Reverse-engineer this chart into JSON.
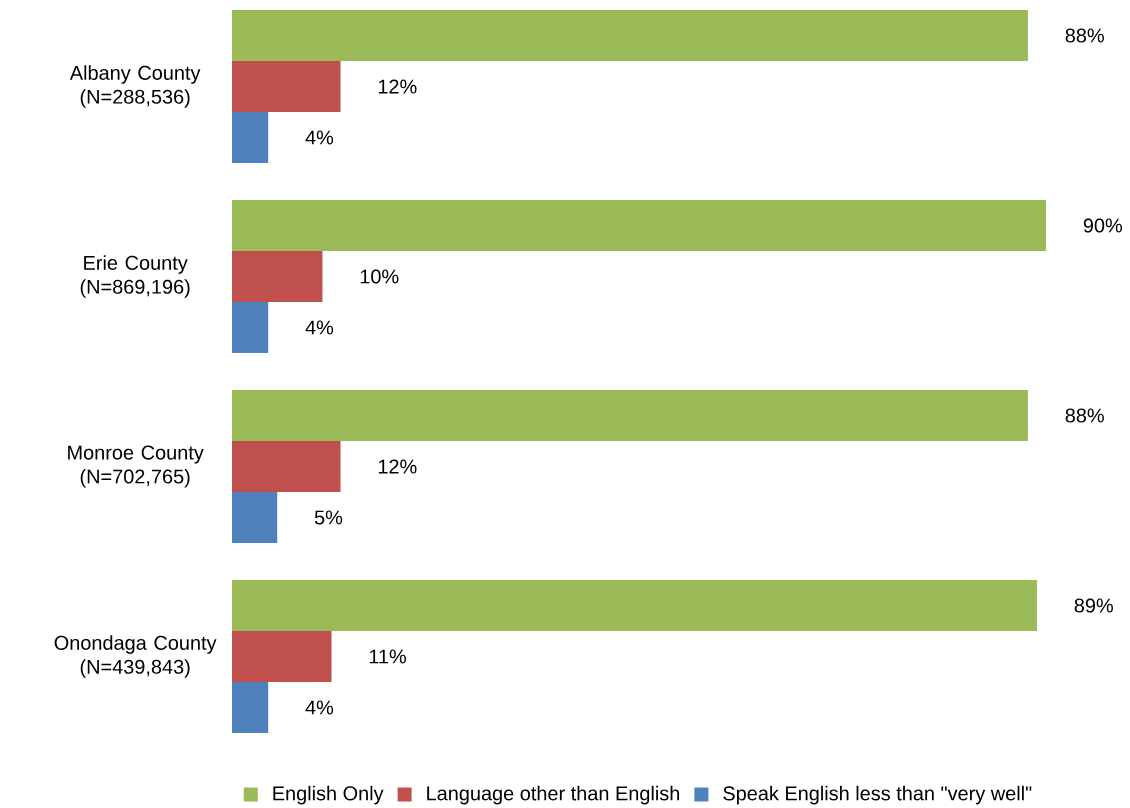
{
  "chart_data": {
    "type": "bar",
    "orientation": "horizontal",
    "categories": [
      "Albany County (N=288,536)",
      "Erie County (N=869,196)",
      "Monroe County (N=702,765)",
      "Onondaga County (N=439,843)"
    ],
    "series": [
      {
        "name": "English Only",
        "color": "#9bbb59",
        "values": [
          88,
          90,
          88,
          89
        ],
        "value_labels": [
          "88%",
          "90%",
          "88%",
          "89%"
        ]
      },
      {
        "name": "Language other than English",
        "color": "#c0504d",
        "values": [
          12,
          10,
          12,
          11
        ],
        "value_labels": [
          "12%",
          "10%",
          "12%",
          "11%"
        ]
      },
      {
        "name": "Speak English less than \"very well\"",
        "color": "#4f81bd",
        "values": [
          4,
          4,
          5,
          4
        ],
        "value_labels": [
          "4%",
          "4%",
          "5%",
          "4%"
        ]
      }
    ],
    "xlim": [
      0,
      90
    ],
    "tick_labels": "y",
    "legend": "bottom"
  }
}
